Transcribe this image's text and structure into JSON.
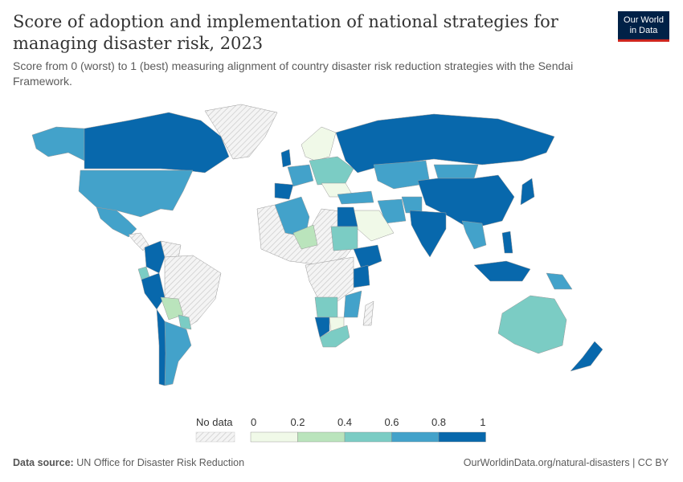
{
  "header": {
    "title": "Score of adoption and implementation of national strategies for managing disaster risk, 2023",
    "subtitle": "Score from 0 (worst) to 1 (best) measuring alignment of country disaster risk reduction strategies with the Sendai Framework.",
    "logo_line1": "Our World",
    "logo_line2": "in Data"
  },
  "legend": {
    "no_data_label": "No data",
    "ticks": [
      "0",
      "0.2",
      "0.4",
      "0.6",
      "0.8",
      "1"
    ],
    "bins": [
      {
        "range": [
          0,
          0.2
        ],
        "color": "#f0f9e8"
      },
      {
        "range": [
          0.2,
          0.4
        ],
        "color": "#bae4bc"
      },
      {
        "range": [
          0.4,
          0.6
        ],
        "color": "#7bccc4"
      },
      {
        "range": [
          0.6,
          0.8
        ],
        "color": "#43a2ca"
      },
      {
        "range": [
          0.8,
          1
        ],
        "color": "#0868ac"
      }
    ],
    "no_data_pattern": "hatched-gray"
  },
  "footer": {
    "source_label": "Data source:",
    "source": "UN Office for Disaster Risk Reduction",
    "link": "OurWorldinData.org/natural-disasters | CC BY"
  }
}
